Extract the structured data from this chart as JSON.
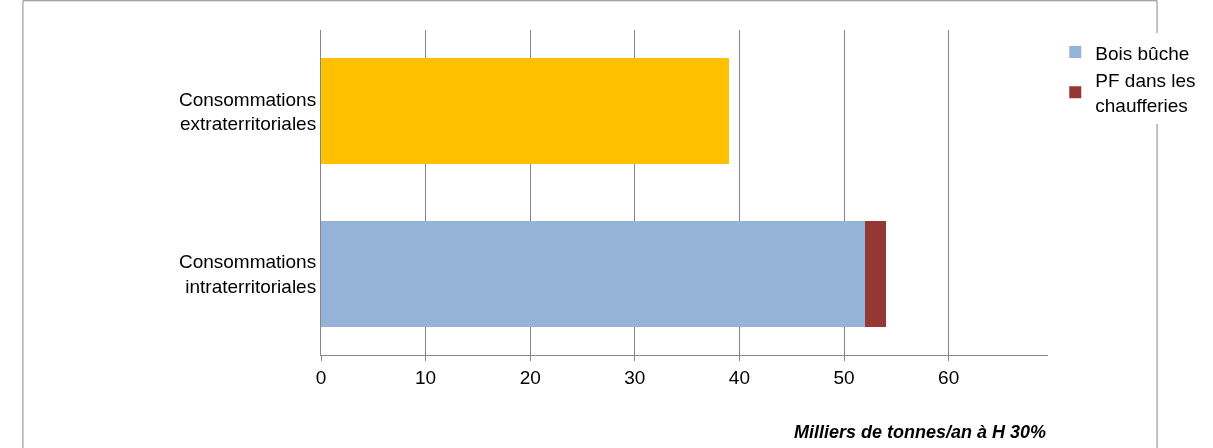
{
  "chart_data": {
    "type": "bar",
    "orientation": "horizontal",
    "stacked": true,
    "categories": [
      "Consommations\nextraterritoriales",
      "Consommations\nintraterritoriales"
    ],
    "series": [
      {
        "name": "Bois bûche",
        "color": "#95b3d7",
        "values": [
          null,
          52
        ]
      },
      {
        "name": "PF dans les\nchaufferies",
        "color": "#953735",
        "values": [
          null,
          2
        ]
      },
      {
        "color": "#ffc000",
        "values": [
          39,
          null
        ]
      }
    ],
    "xlabel": "Milliers de tonnes/an à H 30%",
    "xlim": [
      0,
      69.5
    ],
    "xticks": [
      0,
      10,
      20,
      30,
      40,
      50,
      60
    ],
    "grid": "x",
    "legend": "top right"
  }
}
